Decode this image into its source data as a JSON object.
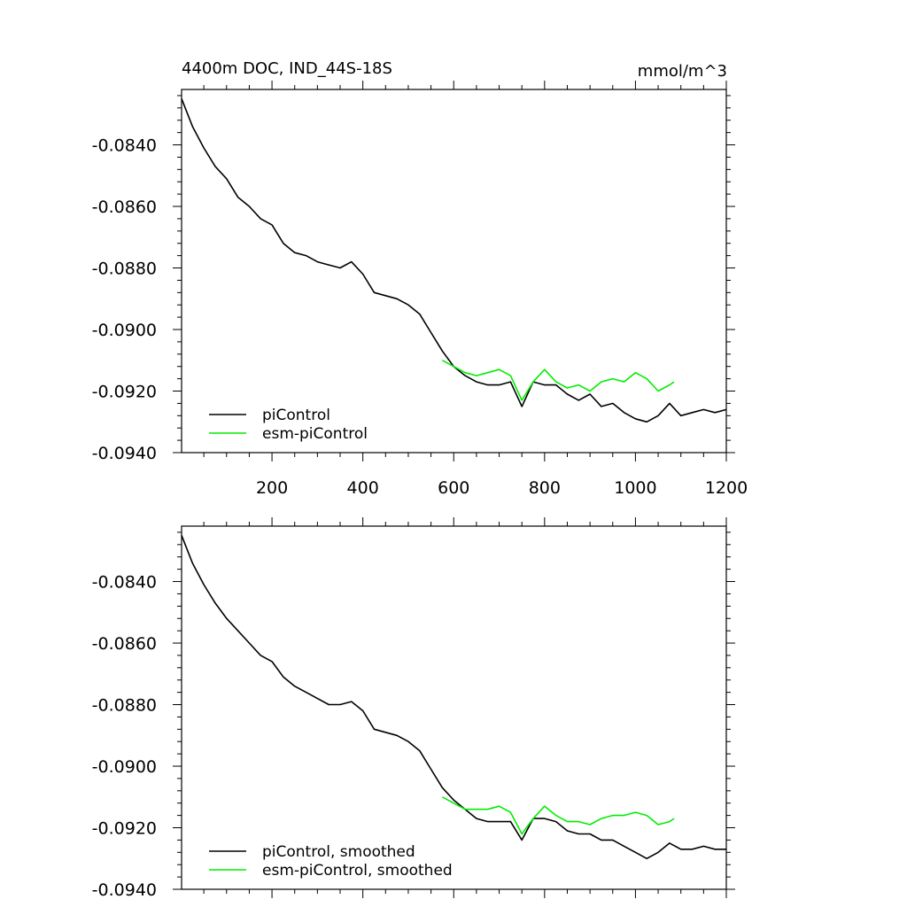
{
  "title_left": "4400m DOC, IND_44S-18S",
  "title_right": "mmol/m^3",
  "colors": {
    "piControl": "#000000",
    "esmPiControl": "#00ee00"
  },
  "chart_data": [
    {
      "type": "line",
      "panel": "top",
      "xlim": [
        1,
        1200
      ],
      "ylim": [
        -0.094,
        -0.0822
      ],
      "xticks": [
        200,
        400,
        600,
        800,
        1000,
        1200
      ],
      "xtick_labels": [
        "200",
        "400",
        "600",
        "800",
        "1000",
        "1200"
      ],
      "yticks": [
        -0.084,
        -0.086,
        -0.088,
        -0.09,
        -0.092,
        -0.094
      ],
      "ytick_labels": [
        "-0.0840",
        "-0.0860",
        "-0.0880",
        "-0.0900",
        "-0.0920",
        "-0.0940"
      ],
      "legend_position": "bottom-left",
      "series": [
        {
          "name": "piControl",
          "color": "#000000",
          "x": [
            1,
            25,
            50,
            75,
            100,
            125,
            150,
            175,
            200,
            225,
            250,
            275,
            300,
            325,
            350,
            375,
            400,
            425,
            450,
            475,
            500,
            525,
            550,
            575,
            600,
            625,
            650,
            675,
            700,
            725,
            750,
            775,
            800,
            825,
            850,
            875,
            900,
            925,
            950,
            975,
            1000,
            1025,
            1050,
            1075,
            1100,
            1125,
            1150,
            1175,
            1200
          ],
          "y": [
            -0.0825,
            -0.0834,
            -0.0841,
            -0.0847,
            -0.0851,
            -0.0857,
            -0.086,
            -0.0864,
            -0.0866,
            -0.0872,
            -0.0875,
            -0.0876,
            -0.0878,
            -0.0879,
            -0.088,
            -0.0878,
            -0.0882,
            -0.0888,
            -0.0889,
            -0.089,
            -0.0892,
            -0.0895,
            -0.0901,
            -0.0907,
            -0.0912,
            -0.0915,
            -0.0917,
            -0.0918,
            -0.0918,
            -0.0917,
            -0.0925,
            -0.0917,
            -0.0918,
            -0.0918,
            -0.0921,
            -0.0923,
            -0.0921,
            -0.0925,
            -0.0924,
            -0.0927,
            -0.0929,
            -0.093,
            -0.0928,
            -0.0924,
            -0.0928,
            -0.0927,
            -0.0926,
            -0.0927,
            -0.0926
          ]
        },
        {
          "name": "esm-piControl",
          "color": "#00ee00",
          "x": [
            575,
            600,
            625,
            650,
            675,
            700,
            725,
            750,
            775,
            800,
            825,
            850,
            875,
            900,
            925,
            950,
            975,
            1000,
            1025,
            1050,
            1075,
            1085
          ],
          "y": [
            -0.091,
            -0.0912,
            -0.0914,
            -0.0915,
            -0.0914,
            -0.0913,
            -0.0915,
            -0.0923,
            -0.0917,
            -0.0913,
            -0.0917,
            -0.0919,
            -0.0918,
            -0.092,
            -0.0917,
            -0.0916,
            -0.0917,
            -0.0914,
            -0.0916,
            -0.092,
            -0.0918,
            -0.0917
          ]
        }
      ]
    },
    {
      "type": "line",
      "panel": "bottom",
      "xlim": [
        1,
        1200
      ],
      "ylim": [
        -0.094,
        -0.0822
      ],
      "xticks": [
        200,
        400,
        600,
        800,
        1000,
        1200
      ],
      "yticks": [
        -0.084,
        -0.086,
        -0.088,
        -0.09,
        -0.092,
        -0.094
      ],
      "ytick_labels": [
        "-0.0840",
        "-0.0860",
        "-0.0880",
        "-0.0900",
        "-0.0920",
        "-0.0940"
      ],
      "legend_position": "bottom-left",
      "series": [
        {
          "name": "piControl, smoothed",
          "color": "#000000",
          "x": [
            1,
            25,
            50,
            75,
            100,
            125,
            150,
            175,
            200,
            225,
            250,
            275,
            300,
            325,
            350,
            375,
            400,
            425,
            450,
            475,
            500,
            525,
            550,
            575,
            600,
            625,
            650,
            675,
            700,
            725,
            750,
            775,
            800,
            825,
            850,
            875,
            900,
            925,
            950,
            975,
            1000,
            1025,
            1050,
            1075,
            1100,
            1125,
            1150,
            1175,
            1200
          ],
          "y": [
            -0.0825,
            -0.0834,
            -0.0841,
            -0.0847,
            -0.0852,
            -0.0856,
            -0.086,
            -0.0864,
            -0.0866,
            -0.0871,
            -0.0874,
            -0.0876,
            -0.0878,
            -0.088,
            -0.088,
            -0.0879,
            -0.0882,
            -0.0888,
            -0.0889,
            -0.089,
            -0.0892,
            -0.0895,
            -0.0901,
            -0.0907,
            -0.0911,
            -0.0914,
            -0.0917,
            -0.0918,
            -0.0918,
            -0.0918,
            -0.0924,
            -0.0917,
            -0.0917,
            -0.0918,
            -0.0921,
            -0.0922,
            -0.0922,
            -0.0924,
            -0.0924,
            -0.0926,
            -0.0928,
            -0.093,
            -0.0928,
            -0.0925,
            -0.0927,
            -0.0927,
            -0.0926,
            -0.0927,
            -0.0927
          ]
        },
        {
          "name": "esm-piControl, smoothed",
          "color": "#00ee00",
          "x": [
            575,
            600,
            625,
            650,
            675,
            700,
            725,
            750,
            775,
            800,
            825,
            850,
            875,
            900,
            925,
            950,
            975,
            1000,
            1025,
            1050,
            1075,
            1085
          ],
          "y": [
            -0.091,
            -0.0912,
            -0.0914,
            -0.0914,
            -0.0914,
            -0.0913,
            -0.0915,
            -0.0922,
            -0.0917,
            -0.0913,
            -0.0916,
            -0.0918,
            -0.0918,
            -0.0919,
            -0.0917,
            -0.0916,
            -0.0916,
            -0.0915,
            -0.0916,
            -0.0919,
            -0.0918,
            -0.0917
          ]
        }
      ]
    }
  ]
}
